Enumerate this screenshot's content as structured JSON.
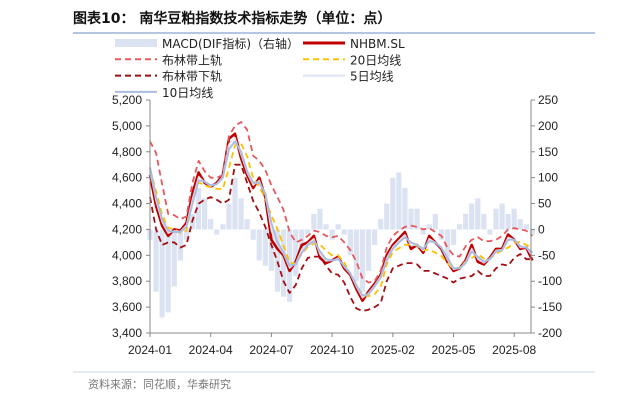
{
  "title": "图表10：  南华豆粕指数技术指标走势（单位：点）",
  "source": "资料来源：同花顺，华泰研究",
  "chart_data": {
    "type": "line",
    "left_axis": {
      "ylim": [
        3400,
        5200
      ],
      "ticks": [
        "3,400",
        "3,600",
        "3,800",
        "4,000",
        "4,200",
        "4,400",
        "4,600",
        "4,800",
        "5,000",
        "5,200"
      ]
    },
    "right_axis": {
      "ylim": [
        -200,
        250
      ],
      "ticks": [
        "-200",
        "-150",
        "-100",
        "-50",
        "0",
        "50",
        "100",
        "150",
        "200",
        "250"
      ]
    },
    "x_ticks": [
      "2024-01",
      "2024-04",
      "2024-07",
      "2024-10",
      "2025-02",
      "2025-05",
      "2025-08"
    ],
    "grid": false,
    "legend_position": "top",
    "series": [
      {
        "name": "MACD(DIF指标)（右轴）",
        "axis": "right",
        "style": "area",
        "color": "#dbe2f2",
        "values": [
          -20,
          -120,
          -170,
          -160,
          -110,
          -60,
          -20,
          30,
          80,
          60,
          20,
          -10,
          10,
          50,
          100,
          60,
          20,
          -20,
          -60,
          -70,
          -80,
          -120,
          -130,
          -140,
          -90,
          -40,
          -10,
          30,
          40,
          10,
          -20,
          10,
          -10,
          -50,
          -100,
          -120,
          -80,
          -30,
          20,
          50,
          100,
          110,
          80,
          40,
          40,
          -10,
          10,
          30,
          -20,
          -60,
          -30,
          10,
          30,
          50,
          60,
          30,
          -10,
          40,
          50,
          30,
          40,
          20,
          10,
          -10
        ]
      },
      {
        "name": "NHBM.SL",
        "axis": "left",
        "style": "solid-thick",
        "color": "#c00000",
        "values": [
          4620,
          4380,
          4230,
          4150,
          4200,
          4190,
          4250,
          4480,
          4640,
          4560,
          4530,
          4560,
          4620,
          4900,
          4940,
          4750,
          4620,
          4520,
          4600,
          4450,
          4120,
          4050,
          4000,
          3880,
          3950,
          4080,
          4100,
          4150,
          3980,
          3940,
          3960,
          3990,
          3900,
          3850,
          3740,
          3650,
          3720,
          3780,
          3850,
          4000,
          4080,
          4130,
          4180,
          4050,
          4080,
          4020,
          4150,
          4100,
          4050,
          3950,
          3880,
          3900,
          3960,
          4080,
          3950,
          3930,
          3980,
          4050,
          4050,
          4160,
          4120,
          4050,
          4060,
          3960
        ]
      },
      {
        "name": "布林带上轨",
        "axis": "left",
        "style": "dashed",
        "color": "#e8585c",
        "values": [
          4880,
          4790,
          4550,
          4320,
          4310,
          4280,
          4300,
          4560,
          4730,
          4650,
          4600,
          4600,
          4620,
          4920,
          5000,
          5030,
          4970,
          4770,
          4730,
          4660,
          4540,
          4450,
          4350,
          4180,
          4100,
          4120,
          4150,
          4190,
          4180,
          4150,
          4140,
          4150,
          4100,
          4040,
          3950,
          3820,
          3790,
          3800,
          3880,
          4060,
          4150,
          4190,
          4220,
          4230,
          4220,
          4200,
          4210,
          4180,
          4150,
          4060,
          4000,
          3990,
          4070,
          4120,
          4140,
          4110,
          4110,
          4120,
          4150,
          4200,
          4210,
          4200,
          4190,
          4150
        ]
      },
      {
        "name": "20日均线",
        "axis": "left",
        "style": "dashed",
        "color": "#ffc000",
        "values": [
          4665,
          4495,
          4315,
          4210,
          4205,
          4170,
          4190,
          4415,
          4565,
          4540,
          4525,
          4515,
          4510,
          4675,
          4850,
          4865,
          4765,
          4595,
          4530,
          4440,
          4310,
          4200,
          4075,
          3945,
          3935,
          4010,
          4065,
          4090,
          4085,
          4035,
          4000,
          4000,
          3945,
          3860,
          3770,
          3695,
          3685,
          3700,
          3755,
          3930,
          4025,
          4055,
          4080,
          4085,
          4075,
          4040,
          4045,
          4020,
          3995,
          3940,
          3895,
          3905,
          3950,
          3980,
          4010,
          3975,
          3975,
          4010,
          4040,
          4060,
          4095,
          4105,
          4080,
          4060
        ]
      },
      {
        "name": "布林带下轨",
        "axis": "left",
        "style": "dashed",
        "color": "#a50d12",
        "values": [
          4450,
          4200,
          4080,
          4100,
          4100,
          4060,
          4080,
          4270,
          4400,
          4430,
          4450,
          4430,
          4400,
          4430,
          4700,
          4700,
          4560,
          4420,
          4330,
          4220,
          4080,
          3950,
          3800,
          3710,
          3770,
          3900,
          3980,
          3990,
          3990,
          3920,
          3860,
          3850,
          3790,
          3680,
          3590,
          3570,
          3580,
          3600,
          3630,
          3800,
          3900,
          3920,
          3940,
          3940,
          3930,
          3880,
          3880,
          3860,
          3840,
          3820,
          3790,
          3820,
          3830,
          3840,
          3880,
          3840,
          3840,
          3900,
          3930,
          3920,
          3980,
          4010,
          3970,
          3970
        ]
      },
      {
        "name": "5日均线",
        "axis": "left",
        "style": "solid-thin",
        "color": "#dde3f0",
        "values": [
          4650,
          4415,
          4255,
          4170,
          4190,
          4185,
          4235,
          4440,
          4610,
          4565,
          4535,
          4555,
          4610,
          4860,
          4910,
          4775,
          4635,
          4540,
          4580,
          4465,
          4185,
          4075,
          4010,
          3900,
          3940,
          4050,
          4090,
          4130,
          4005,
          3955,
          3960,
          3980,
          3910,
          3855,
          3755,
          3670,
          3710,
          3770,
          3840,
          3980,
          4065,
          4115,
          4160,
          4075,
          4080,
          4035,
          4130,
          4100,
          4055,
          3965,
          3890,
          3900,
          3950,
          4055,
          3970,
          3940,
          3975,
          4040,
          4045,
          4140,
          4120,
          4060,
          4060,
          3990
        ]
      },
      {
        "name": "10日均线",
        "axis": "left",
        "style": "solid",
        "color": "#a9bde0",
        "values": [
          4680,
          4450,
          4280,
          4190,
          4180,
          4180,
          4220,
          4400,
          4580,
          4570,
          4540,
          4550,
          4600,
          4820,
          4880,
          4800,
          4650,
          4560,
          4560,
          4480,
          4250,
          4100,
          4020,
          3920,
          3930,
          4020,
          4080,
          4110,
          4030,
          3970,
          3960,
          3970,
          3920,
          3860,
          3770,
          3690,
          3700,
          3760,
          3830,
          3960,
          4050,
          4100,
          4140,
          4100,
          4080,
          4050,
          4110,
          4100,
          4060,
          3980,
          3900,
          3900,
          3940,
          4030,
          3990,
          3950,
          3970,
          4030,
          4040,
          4120,
          4120,
          4070,
          4060,
          4020
        ]
      }
    ]
  }
}
